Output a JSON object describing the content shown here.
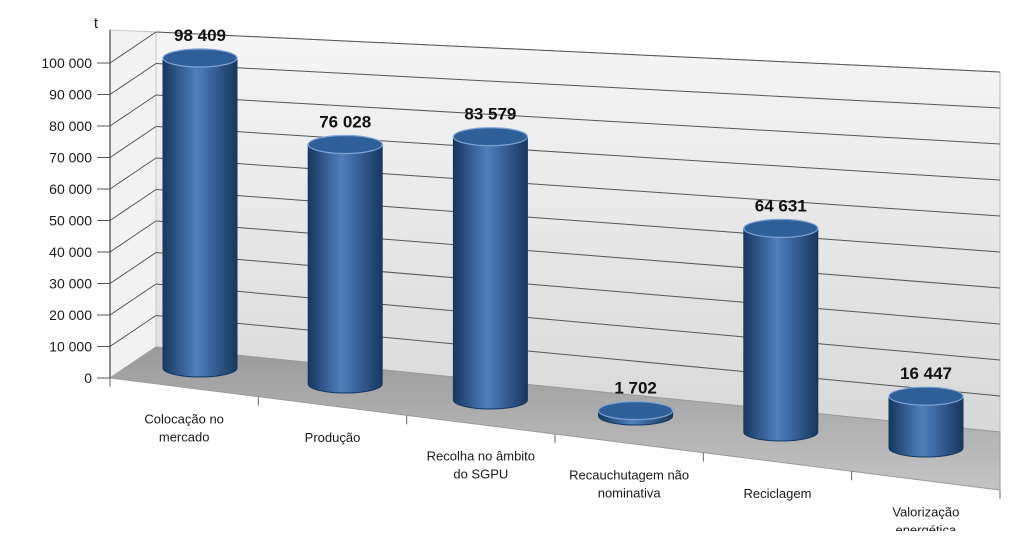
{
  "chart_data": {
    "type": "bar",
    "style": "3d-cylinder",
    "ylabel": "t",
    "ylim": [
      0,
      100000
    ],
    "yticks": [
      "0",
      "10 000",
      "20 000",
      "30 000",
      "40 000",
      "50 000",
      "60 000",
      "70 000",
      "80 000",
      "90 000",
      "100 000"
    ],
    "categories": [
      [
        "Colocação no",
        "mercado"
      ],
      [
        "Produção"
      ],
      [
        "Recolha no âmbito",
        "do SGPU"
      ],
      [
        "Recauchutagem não",
        "nominativa"
      ],
      [
        "Reciclagem"
      ],
      [
        "Valorização",
        "energética"
      ]
    ],
    "values": [
      98409,
      76028,
      83579,
      1702,
      64631,
      16447
    ],
    "data_labels": [
      "98 409",
      "76 028",
      "83 579",
      "1 702",
      "64 631",
      "16 447"
    ],
    "grid": true,
    "colors": {
      "bar_dark": "#16375f",
      "bar_mid": "#2b5c96",
      "bar_light": "#4f7fbd",
      "bar_top": "#2f5f98",
      "wall": "#eaeaea",
      "floor": "#a9a9a9",
      "gridline": "#555555"
    }
  }
}
